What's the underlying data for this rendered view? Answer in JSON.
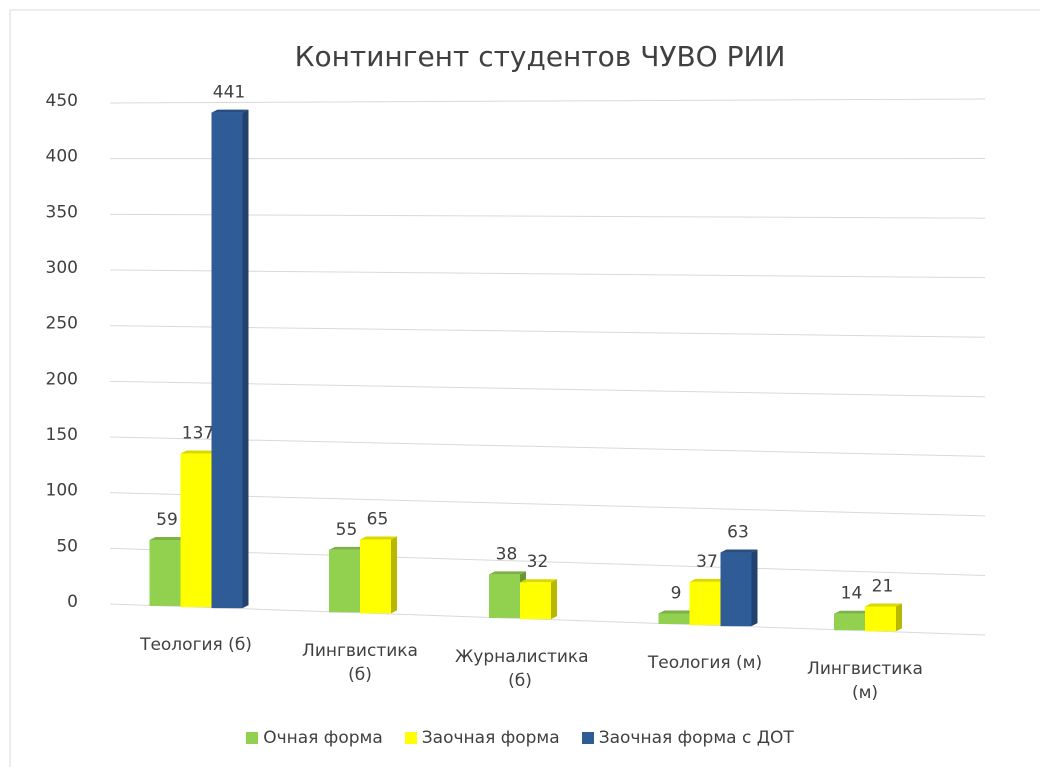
{
  "chart_data": {
    "type": "bar",
    "title": "Контингент студентов ЧУВО РИИ",
    "categories": [
      "Теология (б)",
      "Лингвистика (б)",
      "Журналистика (б)",
      "Теология (м)",
      "Лингвистика (м)"
    ],
    "series": [
      {
        "name": "Очная форма",
        "color": "#92d050",
        "values": [
          59,
          55,
          38,
          9,
          14
        ]
      },
      {
        "name": "Заочная форма",
        "color": "#ffff00",
        "values": [
          137,
          65,
          32,
          37,
          21
        ]
      },
      {
        "name": "Заочная форма с ДОТ",
        "color": "#2f5b97",
        "values": [
          441,
          null,
          null,
          63,
          null
        ]
      }
    ],
    "ylim": [
      0,
      450
    ],
    "yticks": [
      0,
      50,
      100,
      150,
      200,
      250,
      300,
      350,
      400,
      450
    ],
    "grid": true,
    "legend": "bottom"
  }
}
